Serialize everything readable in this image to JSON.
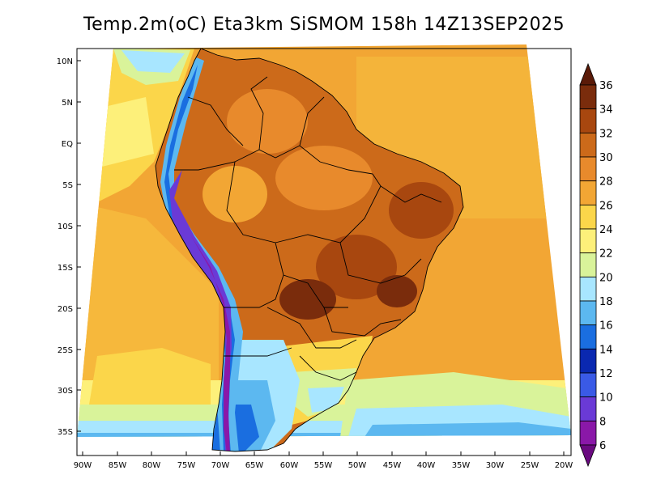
{
  "title": "Temp.2m(oC) Eta3km SiSMOM 158h 14Z13SEP2025",
  "map": {
    "lat_ticks": [
      "10N",
      "5N",
      "EQ",
      "5S",
      "10S",
      "15S",
      "20S",
      "25S",
      "30S",
      "35S"
    ],
    "lon_ticks": [
      "90W",
      "85W",
      "80W",
      "75W",
      "70W",
      "65W",
      "60W",
      "55W",
      "50W",
      "45W",
      "40W",
      "35W",
      "30W",
      "25W",
      "20W"
    ]
  },
  "colorbar": {
    "labels": [
      "36",
      "34",
      "32",
      "30",
      "28",
      "26",
      "24",
      "22",
      "20",
      "18",
      "16",
      "14",
      "12",
      "10",
      "8",
      "6"
    ],
    "colors": [
      "#5a1a08",
      "#7a2c0c",
      "#a8470f",
      "#cc6a1a",
      "#e88a2c",
      "#f2a634",
      "#fbd64a",
      "#fdf07a",
      "#d9f39a",
      "#a8e6ff",
      "#5cb8f0",
      "#1a6ee0",
      "#0a28b0",
      "#3a5ae6",
      "#6a3ad6",
      "#8a18a8",
      "#6a0a80"
    ]
  }
}
